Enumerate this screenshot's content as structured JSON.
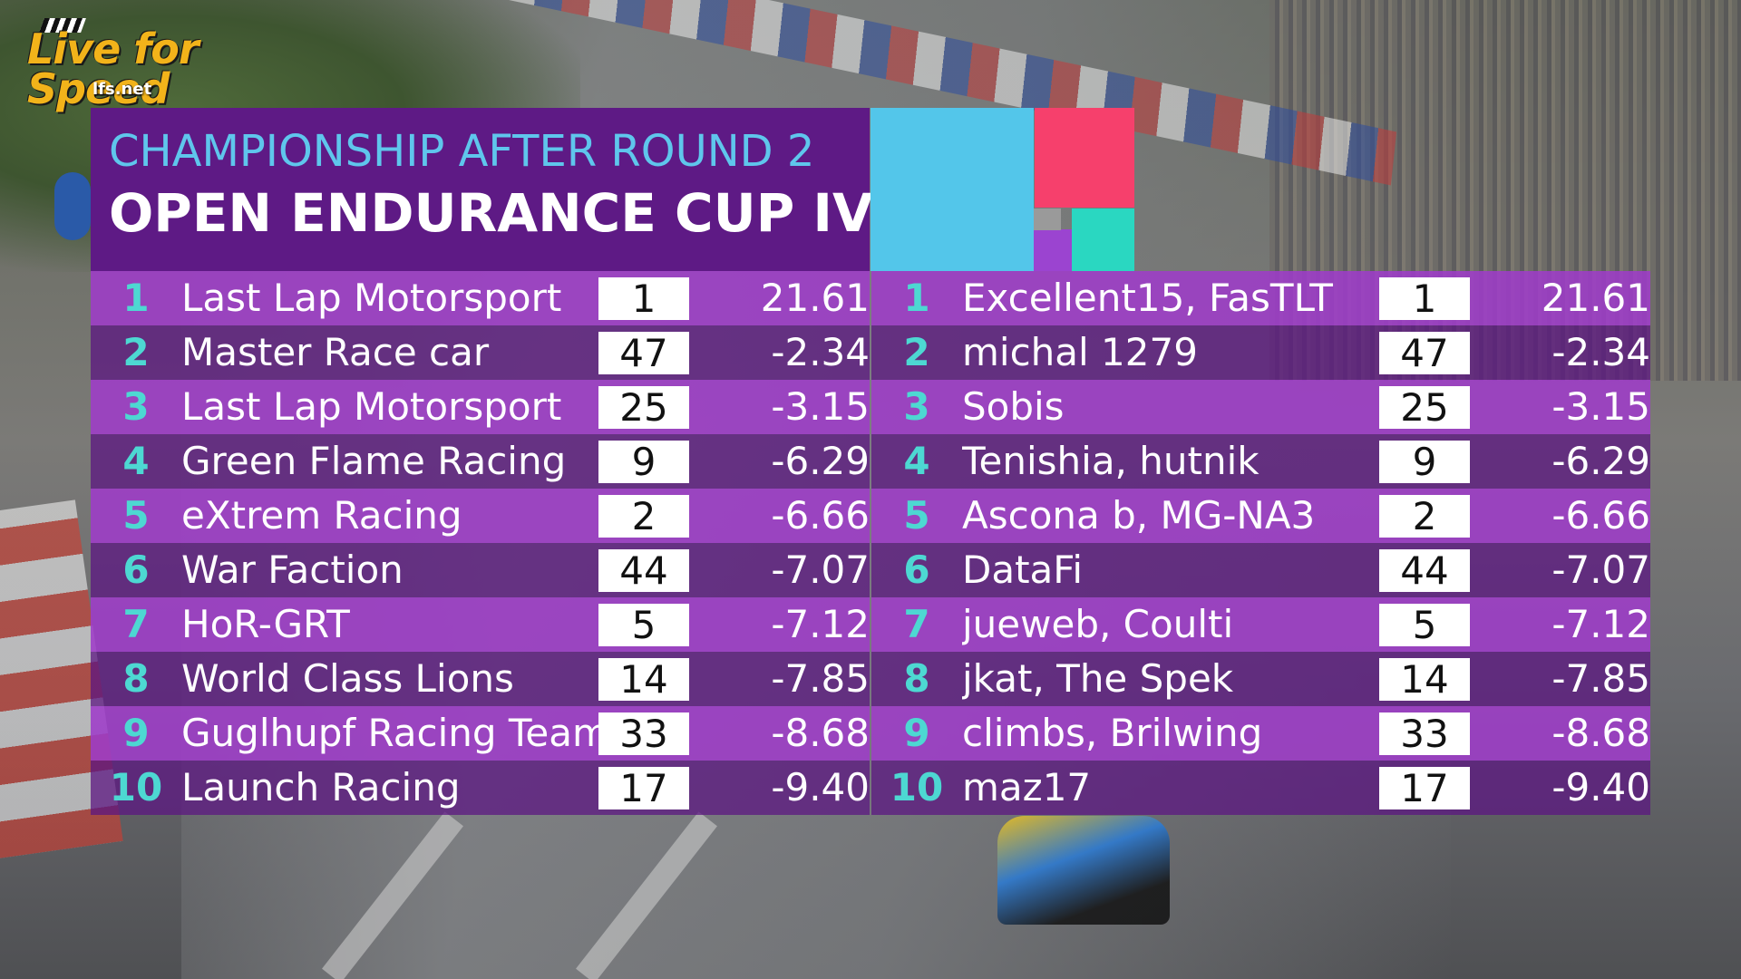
{
  "logo": {
    "brand": "Live for Speed",
    "site": "lfs.net"
  },
  "header": {
    "subtitle": "CHAMPIONSHIP AFTER ROUND 2",
    "title": "OPEN ENDURANCE CUP IV"
  },
  "colors": {
    "header_bg": "#5e1a85",
    "row_odd": "#9e3cc8",
    "row_even": "#5c1682",
    "position_text": "#4dd8d2",
    "subtitle_text": "#5fc6ec",
    "logo_blue": "#53c6ea",
    "logo_pink": "#f6406c",
    "logo_teal": "#2ad7c1",
    "logo_purple": "#9b44d0",
    "logo_grey": "#9a9a9a"
  },
  "teams": [
    {
      "pos": "1",
      "name": "Last Lap Motorsport",
      "num": "1",
      "gap": "21.61"
    },
    {
      "pos": "2",
      "name": "Master Race car",
      "num": "47",
      "gap": "-2.34"
    },
    {
      "pos": "3",
      "name": "Last Lap Motorsport",
      "num": "25",
      "gap": "-3.15"
    },
    {
      "pos": "4",
      "name": "Green Flame Racing",
      "num": "9",
      "gap": "-6.29"
    },
    {
      "pos": "5",
      "name": "eXtrem Racing",
      "num": "2",
      "gap": "-6.66"
    },
    {
      "pos": "6",
      "name": "War Faction",
      "num": "44",
      "gap": "-7.07"
    },
    {
      "pos": "7",
      "name": "HoR-GRT",
      "num": "5",
      "gap": "-7.12"
    },
    {
      "pos": "8",
      "name": "World Class Lions",
      "num": "14",
      "gap": "-7.85"
    },
    {
      "pos": "9",
      "name": "Guglhupf Racing Team",
      "num": "33",
      "gap": "-8.68"
    },
    {
      "pos": "10",
      "name": "Launch Racing",
      "num": "17",
      "gap": "-9.40"
    }
  ],
  "drivers": [
    {
      "pos": "1",
      "name": "Excellent15, FasTLT",
      "num": "1",
      "gap": "21.61"
    },
    {
      "pos": "2",
      "name": "michal 1279",
      "num": "47",
      "gap": "-2.34"
    },
    {
      "pos": "3",
      "name": "Sobis",
      "num": "25",
      "gap": "-3.15"
    },
    {
      "pos": "4",
      "name": "Tenishia, hutnik",
      "num": "9",
      "gap": "-6.29"
    },
    {
      "pos": "5",
      "name": "Ascona b, MG-NA3",
      "num": "2",
      "gap": "-6.66"
    },
    {
      "pos": "6",
      "name": "DataFi",
      "num": "44",
      "gap": "-7.07"
    },
    {
      "pos": "7",
      "name": "jueweb, Coulti",
      "num": "5",
      "gap": "-7.12"
    },
    {
      "pos": "8",
      "name": "jkat, The Spek",
      "num": "14",
      "gap": "-7.85"
    },
    {
      "pos": "9",
      "name": "climbs, Brilwing",
      "num": "33",
      "gap": "-8.68"
    },
    {
      "pos": "10",
      "name": "maz17",
      "num": "17",
      "gap": "-9.40"
    }
  ]
}
